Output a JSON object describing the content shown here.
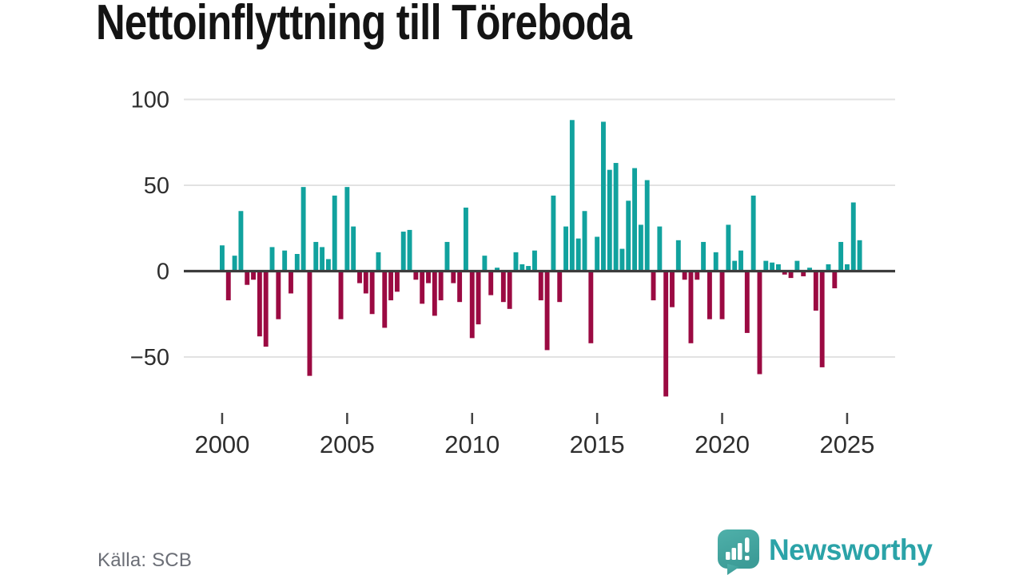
{
  "title": "Nettoinflyttning till Töreboda",
  "source": "Källa: SCB",
  "branding": {
    "logo_text": "Newsworthy"
  },
  "colors": {
    "positive_bar": "#11a29e",
    "negative_bar": "#9b0a42",
    "gridline": "#e2e2e2",
    "zero_line": "#3c3c3c",
    "axis_text": "#2e2e2e",
    "source_text": "#6b6e76",
    "logo_teal": "#2ba3a8",
    "logo_bubble_top": "#4fb0aa",
    "logo_bubble_bottom": "#3c9c97",
    "background": "#ffffff"
  },
  "chart_data": {
    "type": "bar",
    "title": "Nettoinflyttning till Töreboda",
    "frequency": "quarterly",
    "x_start_label": "2000 Q1",
    "x_end_label": "2025 Q3",
    "x_tick_labels": [
      "2000",
      "2005",
      "2010",
      "2015",
      "2020",
      "2025"
    ],
    "y_ticks": [
      100,
      50,
      0,
      -50
    ],
    "ylim": [
      -75,
      100
    ],
    "grid": true,
    "legend": "none",
    "series": [
      {
        "name": "Nettoinflyttning per kvartal",
        "values": [
          15,
          -17,
          9,
          35,
          -8,
          -5,
          -38,
          -44,
          14,
          -28,
          12,
          -13,
          10,
          49,
          -61,
          17,
          14,
          7,
          44,
          -28,
          49,
          26,
          -7,
          -13,
          -25,
          11,
          -33,
          -17,
          -12,
          23,
          24,
          -5,
          -19,
          -7,
          -26,
          -17,
          17,
          -7,
          -18,
          37,
          -39,
          -31,
          9,
          -14,
          2,
          -18,
          -22,
          11,
          4,
          3,
          12,
          -17,
          -46,
          44,
          -18,
          26,
          88,
          19,
          35,
          -42,
          20,
          87,
          59,
          63,
          13,
          41,
          60,
          27,
          53,
          -17,
          26,
          -73,
          -21,
          18,
          -5,
          -42,
          -5,
          17,
          -28,
          11,
          -28,
          27,
          6,
          12,
          -36,
          44,
          -60,
          6,
          5,
          4,
          -2,
          -4,
          6,
          -3,
          2,
          -23,
          -56,
          4,
          -10,
          17,
          4,
          40,
          18
        ],
        "start_year": 2000,
        "start_quarter": 1
      }
    ]
  }
}
